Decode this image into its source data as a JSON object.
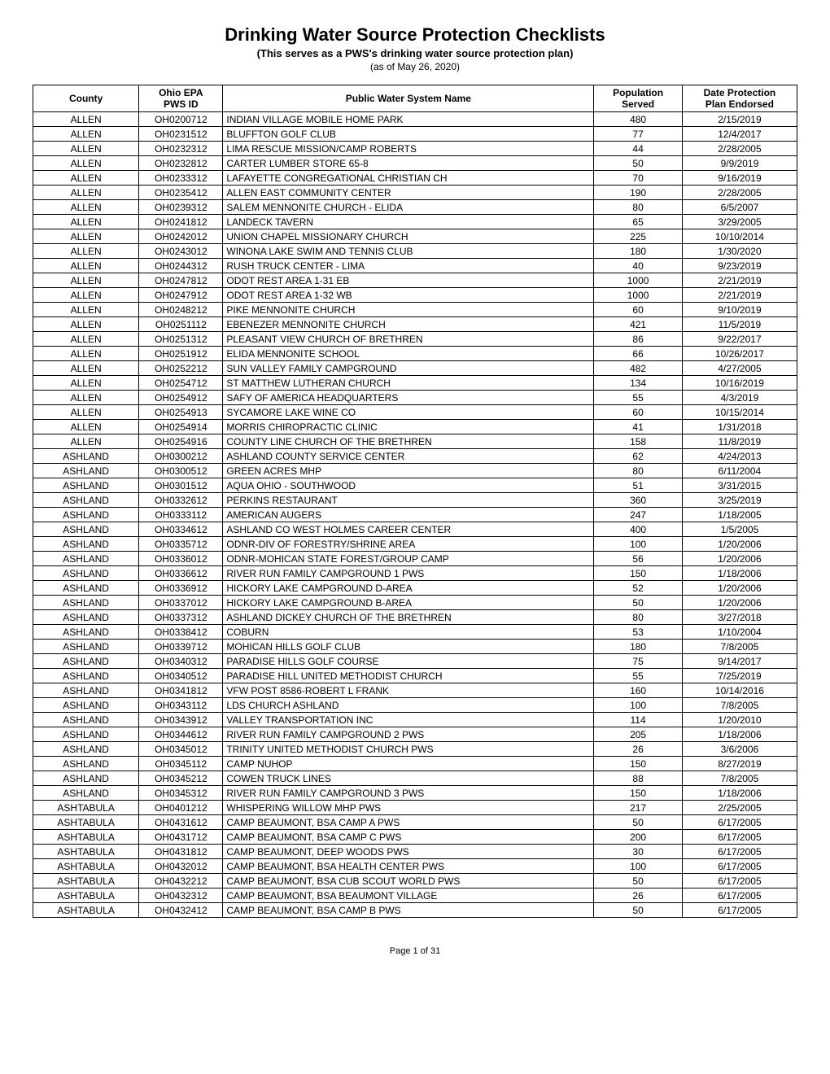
{
  "page": {
    "title": "Drinking Water Source Protection Checklists",
    "subtitle": "(This serves as a PWS's drinking water source protection plan)",
    "dateLine": "(as of May 26, 2020)",
    "footer": "Page 1 of 31"
  },
  "table": {
    "headers": {
      "county": "County",
      "pwsid_top": "Ohio EPA",
      "pwsid_bot": "PWS ID",
      "name": "Public Water System Name",
      "pop_top": "Population",
      "pop_bot": "Served",
      "date_top": "Date Protection",
      "date_bot": "Plan Endorsed"
    },
    "columns": [
      "county",
      "pwsid",
      "name",
      "pop",
      "date"
    ],
    "rows": [
      [
        "ALLEN",
        "OH0200712",
        "INDIAN VILLAGE MOBILE HOME PARK",
        "480",
        "2/15/2019"
      ],
      [
        "ALLEN",
        "OH0231512",
        "BLUFFTON GOLF CLUB",
        "77",
        "12/4/2017"
      ],
      [
        "ALLEN",
        "OH0232312",
        "LIMA RESCUE MISSION/CAMP ROBERTS",
        "44",
        "2/28/2005"
      ],
      [
        "ALLEN",
        "OH0232812",
        "CARTER LUMBER STORE 65-8",
        "50",
        "9/9/2019"
      ],
      [
        "ALLEN",
        "OH0233312",
        "LAFAYETTE CONGREGATIONAL CHRISTIAN CH",
        "70",
        "9/16/2019"
      ],
      [
        "ALLEN",
        "OH0235412",
        "ALLEN EAST COMMUNITY CENTER",
        "190",
        "2/28/2005"
      ],
      [
        "ALLEN",
        "OH0239312",
        "SALEM MENNONITE CHURCH - ELIDA",
        "80",
        "6/5/2007"
      ],
      [
        "ALLEN",
        "OH0241812",
        "LANDECK TAVERN",
        "65",
        "3/29/2005"
      ],
      [
        "ALLEN",
        "OH0242012",
        "UNION CHAPEL MISSIONARY CHURCH",
        "225",
        "10/10/2014"
      ],
      [
        "ALLEN",
        "OH0243012",
        "WINONA LAKE SWIM AND TENNIS CLUB",
        "180",
        "1/30/2020"
      ],
      [
        "ALLEN",
        "OH0244312",
        "RUSH TRUCK CENTER - LIMA",
        "40",
        "9/23/2019"
      ],
      [
        "ALLEN",
        "OH0247812",
        "ODOT REST AREA 1-31 EB",
        "1000",
        "2/21/2019"
      ],
      [
        "ALLEN",
        "OH0247912",
        "ODOT REST AREA 1-32 WB",
        "1000",
        "2/21/2019"
      ],
      [
        "ALLEN",
        "OH0248212",
        "PIKE MENNONITE CHURCH",
        "60",
        "9/10/2019"
      ],
      [
        "ALLEN",
        "OH0251112",
        "EBENEZER MENNONITE CHURCH",
        "421",
        "11/5/2019"
      ],
      [
        "ALLEN",
        "OH0251312",
        "PLEASANT VIEW CHURCH OF BRETHREN",
        "86",
        "9/22/2017"
      ],
      [
        "ALLEN",
        "OH0251912",
        "ELIDA MENNONITE SCHOOL",
        "66",
        "10/26/2017"
      ],
      [
        "ALLEN",
        "OH0252212",
        "SUN VALLEY FAMILY CAMPGROUND",
        "482",
        "4/27/2005"
      ],
      [
        "ALLEN",
        "OH0254712",
        "ST MATTHEW LUTHERAN CHURCH",
        "134",
        "10/16/2019"
      ],
      [
        "ALLEN",
        "OH0254912",
        "SAFY OF AMERICA HEADQUARTERS",
        "55",
        "4/3/2019"
      ],
      [
        "ALLEN",
        "OH0254913",
        "SYCAMORE LAKE WINE CO",
        "60",
        "10/15/2014"
      ],
      [
        "ALLEN",
        "OH0254914",
        "MORRIS CHIROPRACTIC CLINIC",
        "41",
        "1/31/2018"
      ],
      [
        "ALLEN",
        "OH0254916",
        "COUNTY LINE CHURCH OF THE BRETHREN",
        "158",
        "11/8/2019"
      ],
      [
        "ASHLAND",
        "OH0300212",
        "ASHLAND COUNTY SERVICE CENTER",
        "62",
        "4/24/2013"
      ],
      [
        "ASHLAND",
        "OH0300512",
        "GREEN ACRES MHP",
        "80",
        "6/11/2004"
      ],
      [
        "ASHLAND",
        "OH0301512",
        "AQUA OHIO - SOUTHWOOD",
        "51",
        "3/31/2015"
      ],
      [
        "ASHLAND",
        "OH0332612",
        "PERKINS RESTAURANT",
        "360",
        "3/25/2019"
      ],
      [
        "ASHLAND",
        "OH0333112",
        "AMERICAN AUGERS",
        "247",
        "1/18/2005"
      ],
      [
        "ASHLAND",
        "OH0334612",
        "ASHLAND CO WEST HOLMES CAREER CENTER",
        "400",
        "1/5/2005"
      ],
      [
        "ASHLAND",
        "OH0335712",
        "ODNR-DIV OF FORESTRY/SHRINE AREA",
        "100",
        "1/20/2006"
      ],
      [
        "ASHLAND",
        "OH0336012",
        "ODNR-MOHICAN STATE FOREST/GROUP CAMP",
        "56",
        "1/20/2006"
      ],
      [
        "ASHLAND",
        "OH0336612",
        "RIVER RUN FAMILY CAMPGROUND 1 PWS",
        "150",
        "1/18/2006"
      ],
      [
        "ASHLAND",
        "OH0336912",
        "HICKORY LAKE CAMPGROUND D-AREA",
        "52",
        "1/20/2006"
      ],
      [
        "ASHLAND",
        "OH0337012",
        "HICKORY LAKE CAMPGROUND B-AREA",
        "50",
        "1/20/2006"
      ],
      [
        "ASHLAND",
        "OH0337312",
        "ASHLAND DICKEY CHURCH OF THE BRETHREN",
        "80",
        "3/27/2018"
      ],
      [
        "ASHLAND",
        "OH0338412",
        "COBURN",
        "53",
        "1/10/2004"
      ],
      [
        "ASHLAND",
        "OH0339712",
        "MOHICAN HILLS GOLF CLUB",
        "180",
        "7/8/2005"
      ],
      [
        "ASHLAND",
        "OH0340312",
        "PARADISE HILLS GOLF COURSE",
        "75",
        "9/14/2017"
      ],
      [
        "ASHLAND",
        "OH0340512",
        "PARADISE HILL UNITED METHODIST CHURCH",
        "55",
        "7/25/2019"
      ],
      [
        "ASHLAND",
        "OH0341812",
        "VFW POST 8586-ROBERT L FRANK",
        "160",
        "10/14/2016"
      ],
      [
        "ASHLAND",
        "OH0343112",
        "LDS CHURCH ASHLAND",
        "100",
        "7/8/2005"
      ],
      [
        "ASHLAND",
        "OH0343912",
        "VALLEY TRANSPORTATION INC",
        "114",
        "1/20/2010"
      ],
      [
        "ASHLAND",
        "OH0344612",
        "RIVER RUN FAMILY CAMPGROUND 2 PWS",
        "205",
        "1/18/2006"
      ],
      [
        "ASHLAND",
        "OH0345012",
        "TRINITY UNITED METHODIST CHURCH PWS",
        "26",
        "3/6/2006"
      ],
      [
        "ASHLAND",
        "OH0345112",
        "CAMP NUHOP",
        "150",
        "8/27/2019"
      ],
      [
        "ASHLAND",
        "OH0345212",
        "COWEN TRUCK LINES",
        "88",
        "7/8/2005"
      ],
      [
        "ASHLAND",
        "OH0345312",
        "RIVER RUN FAMILY CAMPGROUND 3 PWS",
        "150",
        "1/18/2006"
      ],
      [
        "ASHTABULA",
        "OH0401212",
        "WHISPERING WILLOW MHP PWS",
        "217",
        "2/25/2005"
      ],
      [
        "ASHTABULA",
        "OH0431612",
        "CAMP BEAUMONT, BSA CAMP A PWS",
        "50",
        "6/17/2005"
      ],
      [
        "ASHTABULA",
        "OH0431712",
        "CAMP BEAUMONT, BSA CAMP C PWS",
        "200",
        "6/17/2005"
      ],
      [
        "ASHTABULA",
        "OH0431812",
        "CAMP BEAUMONT, DEEP WOODS PWS",
        "30",
        "6/17/2005"
      ],
      [
        "ASHTABULA",
        "OH0432012",
        "CAMP BEAUMONT, BSA HEALTH CENTER PWS",
        "100",
        "6/17/2005"
      ],
      [
        "ASHTABULA",
        "OH0432212",
        "CAMP BEAUMONT, BSA CUB SCOUT WORLD PWS",
        "50",
        "6/17/2005"
      ],
      [
        "ASHTABULA",
        "OH0432312",
        "CAMP BEAUMONT, BSA BEAUMONT VILLAGE",
        "26",
        "6/17/2005"
      ],
      [
        "ASHTABULA",
        "OH0432412",
        "CAMP BEAUMONT, BSA CAMP B PWS",
        "50",
        "6/17/2005"
      ]
    ]
  }
}
